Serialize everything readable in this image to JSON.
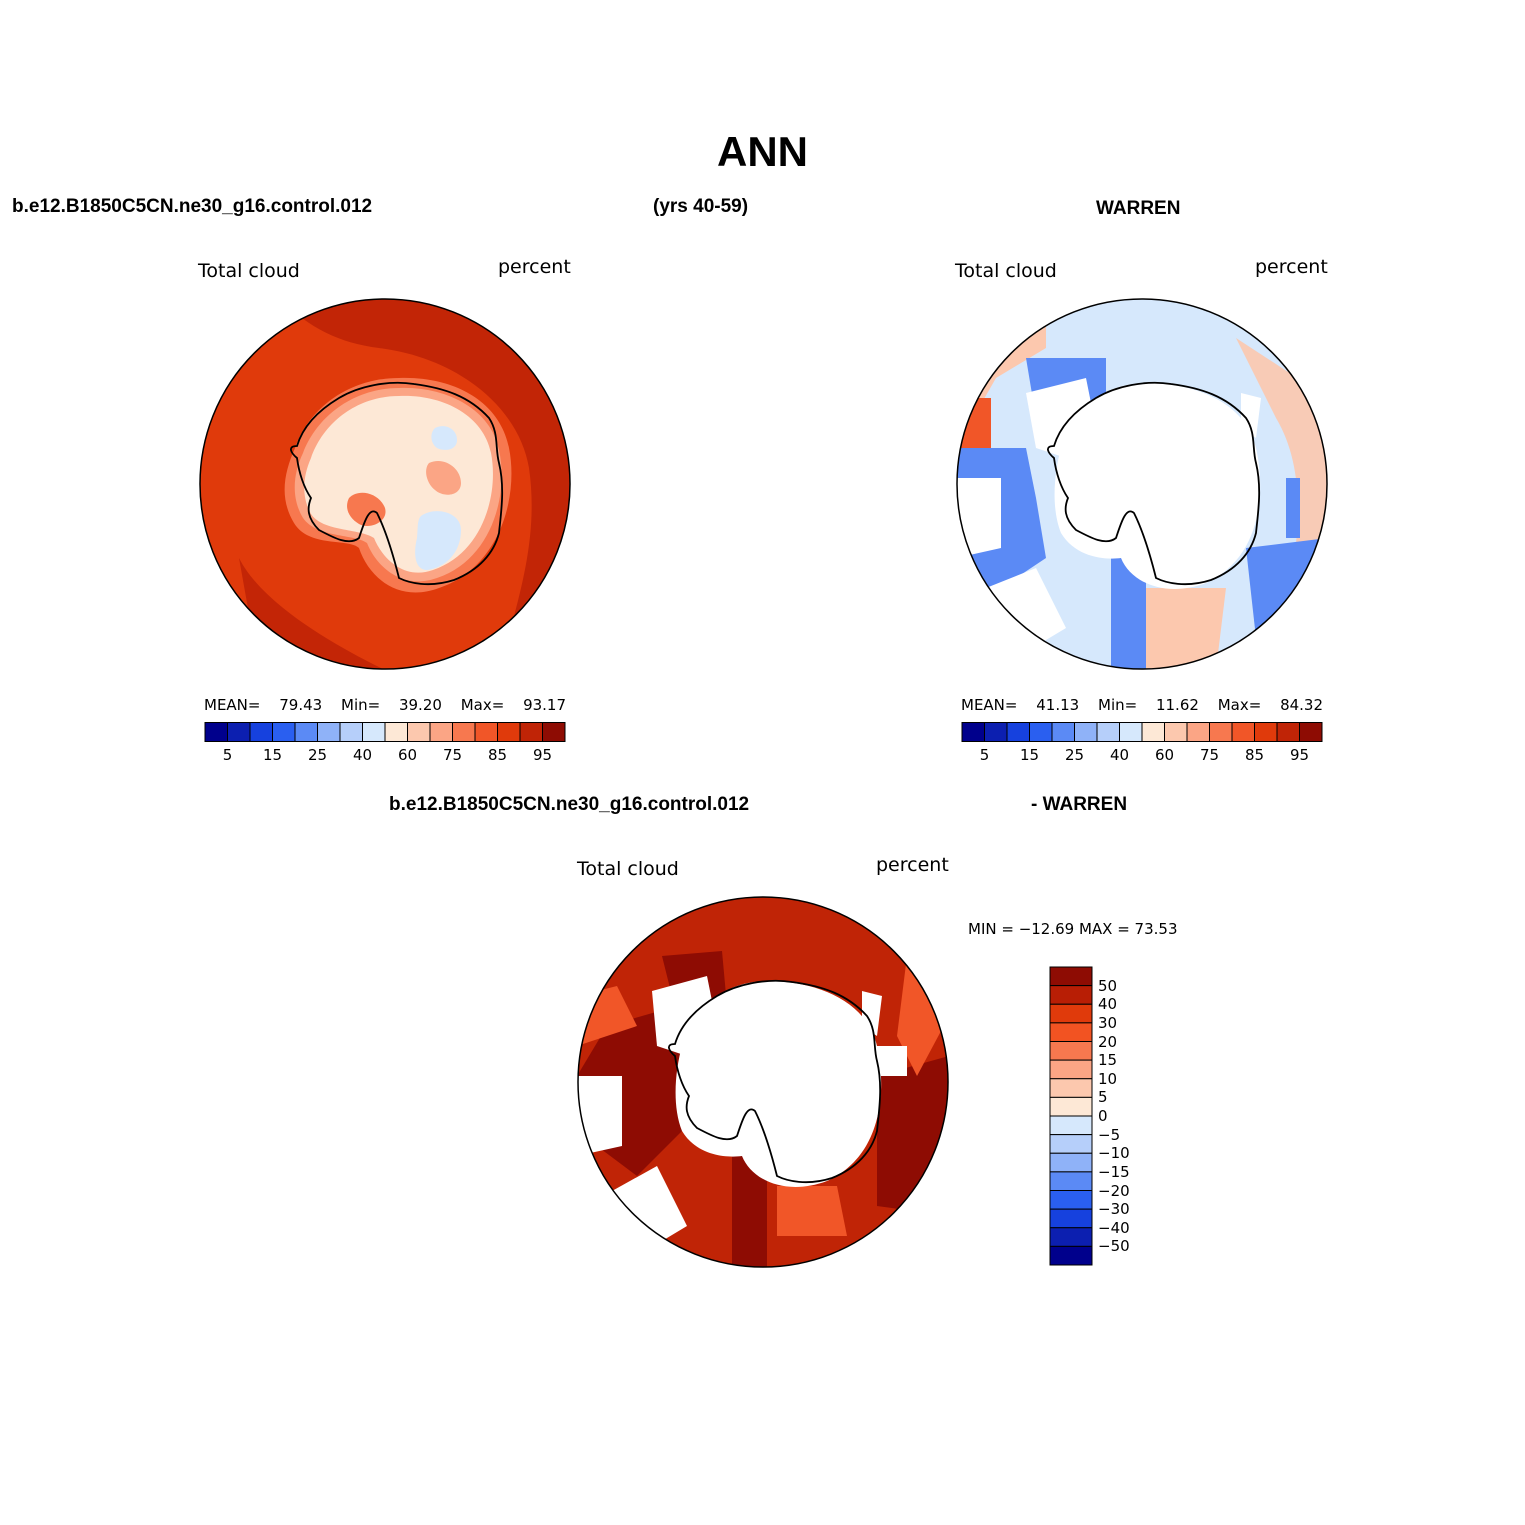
{
  "title": "ANN",
  "header": {
    "case_name": "b.e12.B1850C5CN.ne30_g16.control.012",
    "years": "(yrs 40-59)",
    "obs_name": "WARREN"
  },
  "panels": [
    {
      "id": "model",
      "variable": "Total cloud",
      "units": "percent",
      "stats": {
        "mean_label": "MEAN=",
        "mean": "79.43",
        "min_label": "Min=",
        "min": "39.20",
        "max_label": "Max=",
        "max": "93.17"
      }
    },
    {
      "id": "obs",
      "variable": "Total cloud",
      "units": "percent",
      "stats": {
        "mean_label": "MEAN=",
        "mean": "41.13",
        "min_label": "Min=",
        "min": "11.62",
        "max_label": "Max=",
        "max": "84.32"
      }
    },
    {
      "id": "diff",
      "case_name": "b.e12.B1850C5CN.ne30_g16.control.012",
      "obs_name": "- WARREN",
      "variable": "Total cloud",
      "units": "percent",
      "minmax": "MIN = −12.69  MAX =   73.53"
    }
  ],
  "colorbar_abs": {
    "colors": [
      "#00008c",
      "#0c1fb0",
      "#1641de",
      "#2a5ff0",
      "#5b8af5",
      "#8fb2f8",
      "#b6cffa",
      "#d6e8fc",
      "#fde8d6",
      "#fcc8ae",
      "#fba585",
      "#f7784f",
      "#f15628",
      "#e03a0b",
      "#c02406",
      "#8e0c03"
    ],
    "tick_labels": [
      "5",
      "15",
      "25",
      "40",
      "60",
      "75",
      "85",
      "95"
    ]
  },
  "colorbar_diff": {
    "colors": [
      "#8e0c03",
      "#b81e05",
      "#e03a0b",
      "#f25322",
      "#f7784f",
      "#fba585",
      "#fcc8ae",
      "#fde8d6",
      "#d6e8fc",
      "#b6cffa",
      "#8fb2f8",
      "#5b8af5",
      "#2a5ff0",
      "#1641de",
      "#0c1fb0",
      "#00008c"
    ],
    "tick_labels": [
      "50",
      "40",
      "30",
      "20",
      "15",
      "10",
      "5",
      "0",
      "−5",
      "−10",
      "−15",
      "−20",
      "−30",
      "−40",
      "−50"
    ]
  },
  "map_colors": {
    "ocean_high": "#e03a0b",
    "ocean_max": "#c02406",
    "coast_mid": "#f7784f",
    "coast_low": "#fba585",
    "ice": "#fde8d6",
    "ice_light": "#fcc8ae",
    "ice_blue": "#d6e8fc",
    "obs_light": "#d6e8fc",
    "obs_blue": "#5b8af5",
    "obs_salmon": "#fcc8ae",
    "diff_dark": "#8e0c03",
    "diff_red": "#c02406",
    "diff_orange": "#f15628",
    "missing": "#ffffff",
    "outline": "#000000"
  }
}
